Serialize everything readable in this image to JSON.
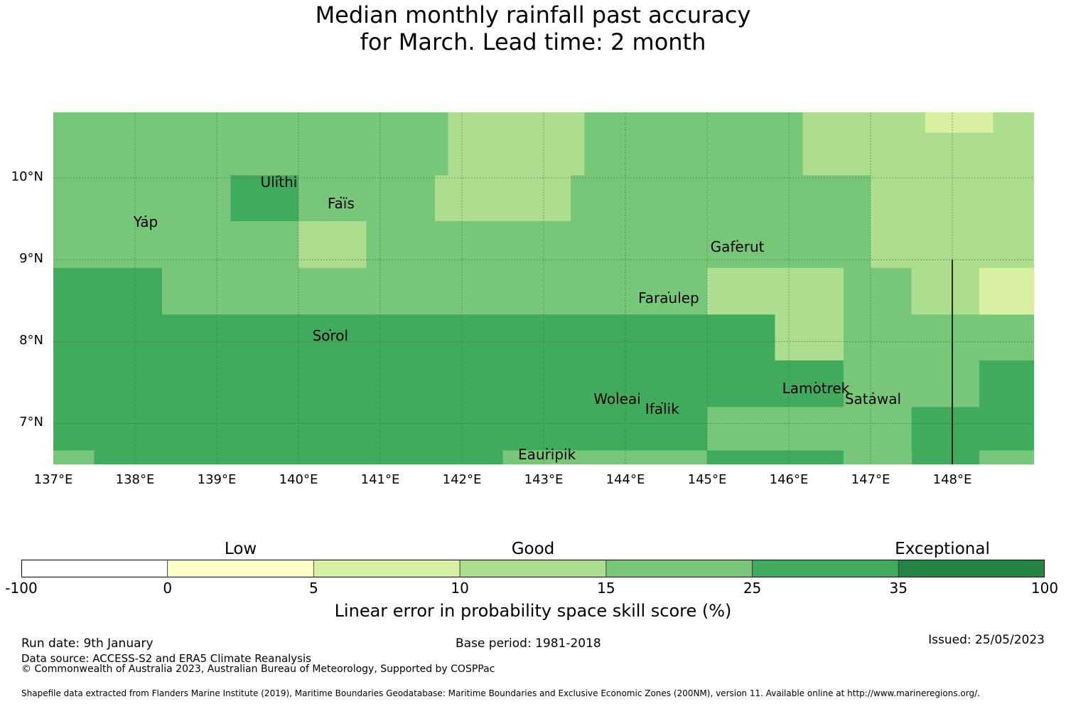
{
  "title": {
    "line1": "Median monthly rainfall past accuracy",
    "line2": "for March. Lead time: 2 month"
  },
  "map": {
    "lon_range": [
      137.0,
      149.0
    ],
    "lat_range": [
      6.5,
      10.8
    ],
    "lon_ticks": [
      {
        "value": 137,
        "label": "137°E"
      },
      {
        "value": 138,
        "label": "138°E"
      },
      {
        "value": 139,
        "label": "139°E"
      },
      {
        "value": 140,
        "label": "140°E"
      },
      {
        "value": 141,
        "label": "141°E"
      },
      {
        "value": 142,
        "label": "142°E"
      },
      {
        "value": 143,
        "label": "143°E"
      },
      {
        "value": 144,
        "label": "144°E"
      },
      {
        "value": 145,
        "label": "145°E"
      },
      {
        "value": 146,
        "label": "146°E"
      },
      {
        "value": 147,
        "label": "147°E"
      },
      {
        "value": 148,
        "label": "148°E"
      }
    ],
    "lat_ticks": [
      {
        "value": 10,
        "label": "10°N"
      },
      {
        "value": 9,
        "label": "9°N"
      },
      {
        "value": 8,
        "label": "8°N"
      },
      {
        "value": 7,
        "label": "7°N"
      }
    ],
    "skill_cells": [
      {
        "lon": [
          137.0,
          141.83
        ],
        "lat": [
          10.03,
          10.8
        ],
        "category": 4
      },
      {
        "lon": [
          141.83,
          143.5
        ],
        "lat": [
          10.03,
          10.8
        ],
        "category": 3
      },
      {
        "lon": [
          143.5,
          146.17
        ],
        "lat": [
          10.03,
          10.8
        ],
        "category": 4
      },
      {
        "lon": [
          146.17,
          148.67
        ],
        "lat": [
          10.55,
          10.8
        ],
        "category": 3
      },
      {
        "lon": [
          146.17,
          147.67
        ],
        "lat": [
          10.03,
          10.55
        ],
        "category": 3
      },
      {
        "lon": [
          147.67,
          148.5
        ],
        "lat": [
          10.55,
          10.8
        ],
        "category": 2
      },
      {
        "lon": [
          147.67,
          149.0
        ],
        "lat": [
          10.03,
          10.55
        ],
        "category": 3
      },
      {
        "lon": [
          148.5,
          149.0
        ],
        "lat": [
          10.55,
          10.8
        ],
        "category": 3
      },
      {
        "lon": [
          146.17,
          147.0
        ],
        "lat": [
          9.47,
          10.03
        ],
        "category": 4
      },
      {
        "lon": [
          137.0,
          139.17
        ],
        "lat": [
          8.9,
          10.03
        ],
        "category": 4
      },
      {
        "lon": [
          139.17,
          140.0
        ],
        "lat": [
          9.47,
          10.03
        ],
        "category": 5
      },
      {
        "lon": [
          139.17,
          140.0
        ],
        "lat": [
          8.9,
          9.47
        ],
        "category": 4
      },
      {
        "lon": [
          140.0,
          140.83
        ],
        "lat": [
          9.47,
          10.03
        ],
        "category": 4
      },
      {
        "lon": [
          140.0,
          140.83
        ],
        "lat": [
          8.9,
          9.47
        ],
        "category": 3
      },
      {
        "lon": [
          140.83,
          141.67
        ],
        "lat": [
          8.9,
          10.03
        ],
        "category": 4
      },
      {
        "lon": [
          141.67,
          143.33
        ],
        "lat": [
          9.47,
          10.03
        ],
        "category": 3
      },
      {
        "lon": [
          141.67,
          143.33
        ],
        "lat": [
          8.9,
          9.47
        ],
        "category": 4
      },
      {
        "lon": [
          143.33,
          146.17
        ],
        "lat": [
          8.9,
          10.03
        ],
        "category": 4
      },
      {
        "lon": [
          146.17,
          147.0
        ],
        "lat": [
          8.9,
          9.47
        ],
        "category": 4
      },
      {
        "lon": [
          147.0,
          149.0
        ],
        "lat": [
          8.9,
          10.03
        ],
        "category": 3
      },
      {
        "lon": [
          137.0,
          138.33
        ],
        "lat": [
          8.33,
          8.9
        ],
        "category": 5
      },
      {
        "lon": [
          138.33,
          145.0
        ],
        "lat": [
          8.33,
          8.9
        ],
        "category": 4
      },
      {
        "lon": [
          145.0,
          146.67
        ],
        "lat": [
          8.33,
          8.9
        ],
        "category": 3
      },
      {
        "lon": [
          146.67,
          147.5
        ],
        "lat": [
          8.33,
          8.9
        ],
        "category": 4
      },
      {
        "lon": [
          147.5,
          148.33
        ],
        "lat": [
          8.33,
          8.9
        ],
        "category": 3
      },
      {
        "lon": [
          148.33,
          149.0
        ],
        "lat": [
          8.33,
          8.9
        ],
        "category": 2
      },
      {
        "lon": [
          137.0,
          145.83
        ],
        "lat": [
          6.67,
          8.33
        ],
        "category": 5
      },
      {
        "lon": [
          145.83,
          146.67
        ],
        "lat": [
          7.77,
          8.33
        ],
        "category": 3
      },
      {
        "lon": [
          145.83,
          146.67
        ],
        "lat": [
          7.2,
          7.77
        ],
        "category": 5
      },
      {
        "lon": [
          146.67,
          149.0
        ],
        "lat": [
          7.77,
          8.33
        ],
        "category": 4
      },
      {
        "lon": [
          146.67,
          148.33
        ],
        "lat": [
          7.2,
          7.77
        ],
        "category": 4
      },
      {
        "lon": [
          148.33,
          149.0
        ],
        "lat": [
          7.2,
          7.77
        ],
        "category": 5
      },
      {
        "lon": [
          145.0,
          146.67
        ],
        "lat": [
          6.67,
          7.2
        ],
        "category": 4
      },
      {
        "lon": [
          146.67,
          147.5
        ],
        "lat": [
          6.67,
          7.2
        ],
        "category": 4
      },
      {
        "lon": [
          147.5,
          148.33
        ],
        "lat": [
          6.5,
          7.2
        ],
        "category": 5
      },
      {
        "lon": [
          148.33,
          149.0
        ],
        "lat": [
          6.67,
          7.2
        ],
        "category": 5
      },
      {
        "lon": [
          137.0,
          137.5
        ],
        "lat": [
          6.5,
          6.67
        ],
        "category": 4
      },
      {
        "lon": [
          137.5,
          142.5
        ],
        "lat": [
          6.5,
          6.67
        ],
        "category": 5
      },
      {
        "lon": [
          142.5,
          145.0
        ],
        "lat": [
          6.5,
          6.67
        ],
        "category": 4
      },
      {
        "lon": [
          145.0,
          146.67
        ],
        "lat": [
          6.5,
          6.67
        ],
        "category": 5
      },
      {
        "lon": [
          146.67,
          147.5
        ],
        "lat": [
          6.5,
          6.67
        ],
        "category": 4
      },
      {
        "lon": [
          148.33,
          149.0
        ],
        "lat": [
          6.5,
          6.67
        ],
        "category": 4
      }
    ],
    "boundary_line": {
      "lon": 148.0,
      "lat": [
        6.5,
        9.0
      ]
    },
    "places": [
      {
        "name": "Ulithi",
        "lon": 139.76,
        "lat": 10.02
      },
      {
        "name": "Faïs",
        "lon": 140.52,
        "lat": 9.76
      },
      {
        "name": "Yap",
        "lon": 138.13,
        "lat": 9.53
      },
      {
        "name": "Gaferut",
        "lon": 145.37,
        "lat": 9.23
      },
      {
        "name": "Faraulep",
        "lon": 144.53,
        "lat": 8.6
      },
      {
        "name": "Sorol",
        "lon": 140.39,
        "lat": 8.14
      },
      {
        "name": "Woleai",
        "lon": 143.9,
        "lat": 7.37
      },
      {
        "name": "Ifalik",
        "lon": 144.45,
        "lat": 7.25
      },
      {
        "name": "Lamotrek",
        "lon": 146.33,
        "lat": 7.5
      },
      {
        "name": "Satawal",
        "lon": 147.03,
        "lat": 7.37
      },
      {
        "name": "Eauripik",
        "lon": 143.04,
        "lat": 6.69
      }
    ]
  },
  "legend": {
    "categories": [
      {
        "name": "Low",
        "position": 1.5
      },
      {
        "name": "Good",
        "position": 3.5
      },
      {
        "name": "Exceptional",
        "position": 6.3
      }
    ],
    "colors": [
      "#ffffff",
      "#ffffcc",
      "#d9f0a3",
      "#addd8e",
      "#78c679",
      "#41ab5d",
      "#238443"
    ],
    "boundaries": [
      "-100",
      "0",
      "5",
      "10",
      "15",
      "25",
      "35",
      "100"
    ],
    "axis_label": "Linear error in probability space skill score (%)"
  },
  "footer": {
    "run_date": "Run date: 9th January",
    "base_period": "Base period: 1981-2018",
    "issued": "Issued: 25/05/2023",
    "data_source": "Data source: ACCESS-S2 and ERA5 Climate Reanalysis",
    "copyright": "© Commonwealth of Australia 2023, Australian Bureau of Meteorology, Supported by COSPPac",
    "shapefile": "Shapefile data extracted from Flanders Marine Institute (2019), Maritime Boundaries Geodatabase: Maritime Boundaries and Exclusive Economic Zones (200NM), version 11. Available online at http://www.marineregions.org/."
  }
}
